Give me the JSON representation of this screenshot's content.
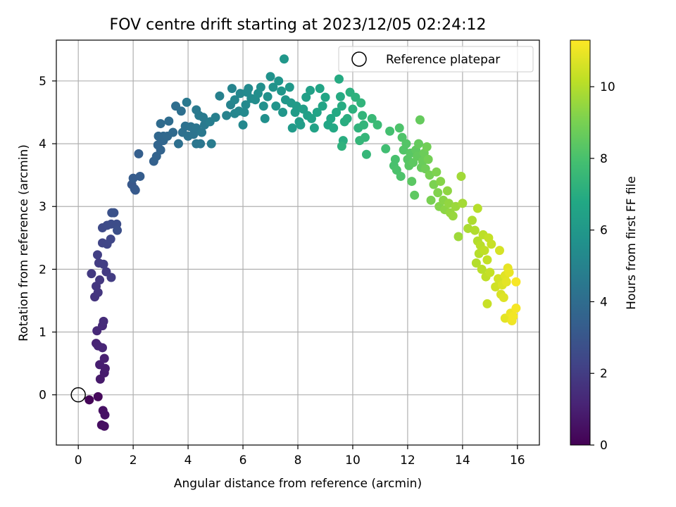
{
  "chart_data": {
    "type": "scatter",
    "title": "FOV centre drift starting at 2023/12/05 02:24:12",
    "xlabel": "Angular distance from reference (arcmin)",
    "ylabel": "Rotation from reference (arcmin)",
    "xlim": [
      -0.8,
      16.8
    ],
    "ylim": [
      -0.8,
      5.65
    ],
    "xticks": [
      0,
      2,
      4,
      6,
      8,
      10,
      12,
      14,
      16
    ],
    "yticks": [
      0,
      1,
      2,
      3,
      4,
      5
    ],
    "grid": true,
    "legend": {
      "position": "top-right",
      "entries": [
        "Reference platepar"
      ]
    },
    "reference_point": {
      "x": 0,
      "y": 0,
      "label": "Reference platepar"
    },
    "colorbar": {
      "label": "Hours from first FF file",
      "min": 0,
      "max": 11.3,
      "ticks": [
        0,
        2,
        4,
        6,
        8,
        10
      ],
      "colormap": "viridis"
    },
    "points": [
      {
        "x": 0.4,
        "y": -0.08,
        "c": 0.15
      },
      {
        "x": 0.72,
        "y": -0.03,
        "c": 0.25
      },
      {
        "x": 0.85,
        "y": -0.48,
        "c": 0.4
      },
      {
        "x": 0.95,
        "y": -0.5,
        "c": 0.45
      },
      {
        "x": 0.9,
        "y": -0.25,
        "c": 0.5
      },
      {
        "x": 0.97,
        "y": -0.32,
        "c": 0.55
      },
      {
        "x": 0.8,
        "y": 0.25,
        "c": 0.8
      },
      {
        "x": 0.95,
        "y": 0.35,
        "c": 0.85
      },
      {
        "x": 0.98,
        "y": 0.42,
        "c": 0.9
      },
      {
        "x": 0.78,
        "y": 0.48,
        "c": 0.95
      },
      {
        "x": 0.95,
        "y": 0.58,
        "c": 1.0
      },
      {
        "x": 0.65,
        "y": 0.82,
        "c": 1.1
      },
      {
        "x": 0.72,
        "y": 0.78,
        "c": 1.15
      },
      {
        "x": 0.88,
        "y": 0.75,
        "c": 1.2
      },
      {
        "x": 0.68,
        "y": 1.02,
        "c": 1.3
      },
      {
        "x": 0.88,
        "y": 1.1,
        "c": 1.35
      },
      {
        "x": 0.92,
        "y": 1.17,
        "c": 1.4
      },
      {
        "x": 0.6,
        "y": 1.56,
        "c": 1.7
      },
      {
        "x": 0.72,
        "y": 1.63,
        "c": 1.75
      },
      {
        "x": 0.65,
        "y": 1.73,
        "c": 1.8
      },
      {
        "x": 0.78,
        "y": 1.83,
        "c": 1.85
      },
      {
        "x": 0.48,
        "y": 1.93,
        "c": 1.9
      },
      {
        "x": 1.02,
        "y": 1.96,
        "c": 1.95
      },
      {
        "x": 1.2,
        "y": 1.87,
        "c": 2.0
      },
      {
        "x": 0.75,
        "y": 2.1,
        "c": 2.0
      },
      {
        "x": 0.92,
        "y": 2.08,
        "c": 2.05
      },
      {
        "x": 0.7,
        "y": 2.23,
        "c": 2.1
      },
      {
        "x": 0.88,
        "y": 2.42,
        "c": 2.3
      },
      {
        "x": 1.05,
        "y": 2.4,
        "c": 2.35
      },
      {
        "x": 1.18,
        "y": 2.48,
        "c": 2.4
      },
      {
        "x": 0.88,
        "y": 2.66,
        "c": 2.5
      },
      {
        "x": 1.05,
        "y": 2.7,
        "c": 2.55
      },
      {
        "x": 1.2,
        "y": 2.72,
        "c": 2.6
      },
      {
        "x": 1.4,
        "y": 2.72,
        "c": 2.65
      },
      {
        "x": 1.42,
        "y": 2.62,
        "c": 2.7
      },
      {
        "x": 1.22,
        "y": 2.9,
        "c": 2.8
      },
      {
        "x": 1.3,
        "y": 2.9,
        "c": 2.85
      },
      {
        "x": 1.95,
        "y": 3.35,
        "c": 3.1
      },
      {
        "x": 2.05,
        "y": 3.28,
        "c": 3.15
      },
      {
        "x": 2.08,
        "y": 3.26,
        "c": 3.2
      },
      {
        "x": 2.0,
        "y": 3.45,
        "c": 3.25
      },
      {
        "x": 2.25,
        "y": 3.48,
        "c": 3.3
      },
      {
        "x": 2.2,
        "y": 3.84,
        "c": 3.4
      },
      {
        "x": 2.75,
        "y": 3.72,
        "c": 3.5
      },
      {
        "x": 2.85,
        "y": 3.8,
        "c": 3.55
      },
      {
        "x": 3.0,
        "y": 3.9,
        "c": 3.6
      },
      {
        "x": 2.9,
        "y": 3.98,
        "c": 3.65
      },
      {
        "x": 3.1,
        "y": 4.05,
        "c": 3.7
      },
      {
        "x": 2.92,
        "y": 4.12,
        "c": 3.75
      },
      {
        "x": 3.1,
        "y": 4.12,
        "c": 3.8
      },
      {
        "x": 3.25,
        "y": 4.12,
        "c": 3.85
      },
      {
        "x": 3.45,
        "y": 4.18,
        "c": 3.9
      },
      {
        "x": 3.0,
        "y": 4.32,
        "c": 3.95
      },
      {
        "x": 3.3,
        "y": 4.36,
        "c": 4.0
      },
      {
        "x": 3.55,
        "y": 4.6,
        "c": 4.05
      },
      {
        "x": 3.75,
        "y": 4.52,
        "c": 4.1
      },
      {
        "x": 3.65,
        "y": 4.0,
        "c": 4.1
      },
      {
        "x": 3.8,
        "y": 4.18,
        "c": 4.15
      },
      {
        "x": 3.9,
        "y": 4.28,
        "c": 4.2
      },
      {
        "x": 4.0,
        "y": 4.12,
        "c": 4.25
      },
      {
        "x": 4.1,
        "y": 4.27,
        "c": 4.3
      },
      {
        "x": 4.2,
        "y": 4.15,
        "c": 4.35
      },
      {
        "x": 4.3,
        "y": 4.25,
        "c": 4.4
      },
      {
        "x": 4.45,
        "y": 4.0,
        "c": 4.45
      },
      {
        "x": 4.3,
        "y": 4.0,
        "c": 4.45
      },
      {
        "x": 4.5,
        "y": 4.18,
        "c": 4.5
      },
      {
        "x": 4.6,
        "y": 4.3,
        "c": 4.55
      },
      {
        "x": 4.4,
        "y": 4.45,
        "c": 4.6
      },
      {
        "x": 4.55,
        "y": 4.42,
        "c": 4.6
      },
      {
        "x": 4.3,
        "y": 4.54,
        "c": 4.55
      },
      {
        "x": 3.95,
        "y": 4.66,
        "c": 4.5
      },
      {
        "x": 4.85,
        "y": 4.0,
        "c": 4.7
      },
      {
        "x": 4.8,
        "y": 4.35,
        "c": 4.75
      },
      {
        "x": 5.0,
        "y": 4.42,
        "c": 4.85
      },
      {
        "x": 5.15,
        "y": 4.76,
        "c": 4.9
      },
      {
        "x": 5.4,
        "y": 4.45,
        "c": 4.95
      },
      {
        "x": 5.55,
        "y": 4.62,
        "c": 5.0
      },
      {
        "x": 5.6,
        "y": 4.88,
        "c": 5.05
      },
      {
        "x": 5.7,
        "y": 4.48,
        "c": 5.1
      },
      {
        "x": 5.85,
        "y": 4.52,
        "c": 5.15
      },
      {
        "x": 5.7,
        "y": 4.7,
        "c": 5.15
      },
      {
        "x": 5.9,
        "y": 4.8,
        "c": 5.2
      },
      {
        "x": 6.0,
        "y": 4.3,
        "c": 5.25
      },
      {
        "x": 6.05,
        "y": 4.5,
        "c": 5.3
      },
      {
        "x": 6.1,
        "y": 4.62,
        "c": 5.3
      },
      {
        "x": 6.15,
        "y": 4.82,
        "c": 5.35
      },
      {
        "x": 6.2,
        "y": 4.88,
        "c": 5.35
      },
      {
        "x": 6.3,
        "y": 4.72,
        "c": 5.4
      },
      {
        "x": 6.45,
        "y": 4.7,
        "c": 5.45
      },
      {
        "x": 6.55,
        "y": 4.8,
        "c": 5.5
      },
      {
        "x": 6.65,
        "y": 4.9,
        "c": 5.55
      },
      {
        "x": 6.75,
        "y": 4.6,
        "c": 5.6
      },
      {
        "x": 6.8,
        "y": 4.4,
        "c": 5.6
      },
      {
        "x": 6.9,
        "y": 4.75,
        "c": 5.65
      },
      {
        "x": 7.0,
        "y": 5.07,
        "c": 5.7
      },
      {
        "x": 7.1,
        "y": 4.9,
        "c": 5.75
      },
      {
        "x": 7.2,
        "y": 4.6,
        "c": 5.8
      },
      {
        "x": 7.3,
        "y": 5.0,
        "c": 5.85
      },
      {
        "x": 7.4,
        "y": 4.84,
        "c": 5.9
      },
      {
        "x": 7.45,
        "y": 4.5,
        "c": 5.9
      },
      {
        "x": 7.55,
        "y": 4.7,
        "c": 5.95
      },
      {
        "x": 7.5,
        "y": 5.35,
        "c": 5.95
      },
      {
        "x": 7.7,
        "y": 4.9,
        "c": 6.0
      },
      {
        "x": 7.75,
        "y": 4.65,
        "c": 6.05
      },
      {
        "x": 7.8,
        "y": 4.25,
        "c": 6.1
      },
      {
        "x": 7.9,
        "y": 4.5,
        "c": 6.15
      },
      {
        "x": 7.95,
        "y": 4.6,
        "c": 6.15
      },
      {
        "x": 8.05,
        "y": 4.35,
        "c": 6.2
      },
      {
        "x": 8.1,
        "y": 4.3,
        "c": 6.25
      },
      {
        "x": 8.2,
        "y": 4.55,
        "c": 6.3
      },
      {
        "x": 8.3,
        "y": 4.74,
        "c": 6.35
      },
      {
        "x": 8.35,
        "y": 4.45,
        "c": 6.35
      },
      {
        "x": 8.45,
        "y": 4.85,
        "c": 6.4
      },
      {
        "x": 8.5,
        "y": 4.4,
        "c": 6.45
      },
      {
        "x": 8.6,
        "y": 4.25,
        "c": 6.5
      },
      {
        "x": 8.7,
        "y": 4.5,
        "c": 6.55
      },
      {
        "x": 8.8,
        "y": 4.88,
        "c": 6.6
      },
      {
        "x": 8.9,
        "y": 4.6,
        "c": 6.6
      },
      {
        "x": 9.0,
        "y": 4.74,
        "c": 6.65
      },
      {
        "x": 9.1,
        "y": 4.3,
        "c": 6.7
      },
      {
        "x": 9.2,
        "y": 4.4,
        "c": 6.75
      },
      {
        "x": 9.3,
        "y": 4.25,
        "c": 6.8
      },
      {
        "x": 9.4,
        "y": 4.5,
        "c": 6.85
      },
      {
        "x": 9.5,
        "y": 5.03,
        "c": 6.9
      },
      {
        "x": 9.55,
        "y": 4.75,
        "c": 6.9
      },
      {
        "x": 9.6,
        "y": 4.6,
        "c": 6.95
      },
      {
        "x": 9.65,
        "y": 4.05,
        "c": 7.0
      },
      {
        "x": 9.7,
        "y": 4.35,
        "c": 7.0
      },
      {
        "x": 9.8,
        "y": 4.4,
        "c": 7.05
      },
      {
        "x": 9.9,
        "y": 4.82,
        "c": 7.1
      },
      {
        "x": 10.0,
        "y": 4.55,
        "c": 7.15
      },
      {
        "x": 10.1,
        "y": 4.74,
        "c": 7.2
      },
      {
        "x": 10.2,
        "y": 4.25,
        "c": 7.25
      },
      {
        "x": 10.3,
        "y": 4.65,
        "c": 7.3
      },
      {
        "x": 10.35,
        "y": 4.45,
        "c": 7.35
      },
      {
        "x": 10.4,
        "y": 4.3,
        "c": 7.35
      },
      {
        "x": 10.45,
        "y": 4.1,
        "c": 7.4
      },
      {
        "x": 10.5,
        "y": 3.83,
        "c": 7.45
      },
      {
        "x": 10.25,
        "y": 4.05,
        "c": 7.4
      },
      {
        "x": 9.6,
        "y": 3.96,
        "c": 7.2
      },
      {
        "x": 10.7,
        "y": 4.4,
        "c": 7.55
      },
      {
        "x": 10.9,
        "y": 4.3,
        "c": 7.65
      },
      {
        "x": 11.2,
        "y": 3.92,
        "c": 7.8
      },
      {
        "x": 11.35,
        "y": 4.2,
        "c": 7.9
      },
      {
        "x": 11.5,
        "y": 3.65,
        "c": 8.0
      },
      {
        "x": 11.55,
        "y": 3.75,
        "c": 8.0
      },
      {
        "x": 11.6,
        "y": 3.58,
        "c": 8.05
      },
      {
        "x": 11.7,
        "y": 4.25,
        "c": 8.1
      },
      {
        "x": 11.75,
        "y": 3.48,
        "c": 8.1
      },
      {
        "x": 11.8,
        "y": 4.1,
        "c": 8.15
      },
      {
        "x": 11.85,
        "y": 3.9,
        "c": 8.2
      },
      {
        "x": 11.95,
        "y": 4.0,
        "c": 8.25
      },
      {
        "x": 12.0,
        "y": 3.75,
        "c": 8.3
      },
      {
        "x": 12.05,
        "y": 3.65,
        "c": 8.35
      },
      {
        "x": 12.1,
        "y": 3.85,
        "c": 8.35
      },
      {
        "x": 12.15,
        "y": 3.4,
        "c": 8.4
      },
      {
        "x": 12.2,
        "y": 3.7,
        "c": 8.45
      },
      {
        "x": 12.25,
        "y": 3.18,
        "c": 8.45
      },
      {
        "x": 12.3,
        "y": 3.9,
        "c": 8.5
      },
      {
        "x": 12.35,
        "y": 3.8,
        "c": 8.55
      },
      {
        "x": 12.4,
        "y": 4.0,
        "c": 8.6
      },
      {
        "x": 12.45,
        "y": 4.38,
        "c": 8.6
      },
      {
        "x": 12.5,
        "y": 3.62,
        "c": 8.65
      },
      {
        "x": 12.55,
        "y": 3.72,
        "c": 8.7
      },
      {
        "x": 12.6,
        "y": 3.85,
        "c": 8.75
      },
      {
        "x": 12.65,
        "y": 3.6,
        "c": 8.8
      },
      {
        "x": 12.7,
        "y": 3.95,
        "c": 8.85
      },
      {
        "x": 12.75,
        "y": 3.75,
        "c": 8.9
      },
      {
        "x": 12.8,
        "y": 3.5,
        "c": 8.95
      },
      {
        "x": 12.85,
        "y": 3.1,
        "c": 9.0
      },
      {
        "x": 12.95,
        "y": 3.35,
        "c": 9.05
      },
      {
        "x": 13.05,
        "y": 3.55,
        "c": 9.1
      },
      {
        "x": 13.1,
        "y": 3.22,
        "c": 9.15
      },
      {
        "x": 13.15,
        "y": 3.0,
        "c": 9.2
      },
      {
        "x": 13.2,
        "y": 3.4,
        "c": 9.25
      },
      {
        "x": 13.3,
        "y": 3.1,
        "c": 9.3
      },
      {
        "x": 13.35,
        "y": 2.95,
        "c": 9.35
      },
      {
        "x": 13.45,
        "y": 3.25,
        "c": 9.4
      },
      {
        "x": 13.5,
        "y": 3.05,
        "c": 9.45
      },
      {
        "x": 13.55,
        "y": 2.9,
        "c": 9.5
      },
      {
        "x": 13.65,
        "y": 2.85,
        "c": 9.55
      },
      {
        "x": 13.75,
        "y": 3.0,
        "c": 9.6
      },
      {
        "x": 13.85,
        "y": 2.52,
        "c": 9.65
      },
      {
        "x": 13.95,
        "y": 3.48,
        "c": 9.7
      },
      {
        "x": 14.0,
        "y": 3.05,
        "c": 9.75
      },
      {
        "x": 14.2,
        "y": 2.65,
        "c": 9.85
      },
      {
        "x": 14.35,
        "y": 2.78,
        "c": 9.9
      },
      {
        "x": 14.45,
        "y": 2.62,
        "c": 9.95
      },
      {
        "x": 14.55,
        "y": 2.45,
        "c": 10.0
      },
      {
        "x": 14.6,
        "y": 2.25,
        "c": 10.05
      },
      {
        "x": 14.5,
        "y": 2.1,
        "c": 10.0
      },
      {
        "x": 14.55,
        "y": 2.97,
        "c": 10.05
      },
      {
        "x": 14.65,
        "y": 2.38,
        "c": 10.1
      },
      {
        "x": 14.7,
        "y": 2.0,
        "c": 10.1
      },
      {
        "x": 14.75,
        "y": 2.55,
        "c": 10.15
      },
      {
        "x": 14.8,
        "y": 2.3,
        "c": 10.2
      },
      {
        "x": 14.85,
        "y": 1.88,
        "c": 10.2
      },
      {
        "x": 14.9,
        "y": 2.15,
        "c": 10.25
      },
      {
        "x": 14.95,
        "y": 2.5,
        "c": 10.3
      },
      {
        "x": 15.0,
        "y": 1.95,
        "c": 10.3
      },
      {
        "x": 14.9,
        "y": 1.45,
        "c": 10.35
      },
      {
        "x": 15.05,
        "y": 2.4,
        "c": 10.35
      },
      {
        "x": 15.2,
        "y": 1.72,
        "c": 10.5
      },
      {
        "x": 15.3,
        "y": 1.85,
        "c": 10.55
      },
      {
        "x": 15.35,
        "y": 2.3,
        "c": 10.6
      },
      {
        "x": 15.4,
        "y": 1.6,
        "c": 10.65
      },
      {
        "x": 15.45,
        "y": 1.75,
        "c": 10.7
      },
      {
        "x": 15.5,
        "y": 1.55,
        "c": 10.75
      },
      {
        "x": 15.55,
        "y": 1.9,
        "c": 10.8
      },
      {
        "x": 15.6,
        "y": 1.8,
        "c": 10.85
      },
      {
        "x": 15.55,
        "y": 1.22,
        "c": 10.85
      },
      {
        "x": 15.65,
        "y": 2.02,
        "c": 10.9
      },
      {
        "x": 15.7,
        "y": 1.95,
        "c": 10.95
      },
      {
        "x": 15.75,
        "y": 1.3,
        "c": 11.0
      },
      {
        "x": 15.8,
        "y": 1.18,
        "c": 11.05
      },
      {
        "x": 15.85,
        "y": 1.25,
        "c": 11.1
      },
      {
        "x": 15.95,
        "y": 1.38,
        "c": 11.15
      },
      {
        "x": 15.95,
        "y": 1.8,
        "c": 11.2
      }
    ]
  }
}
